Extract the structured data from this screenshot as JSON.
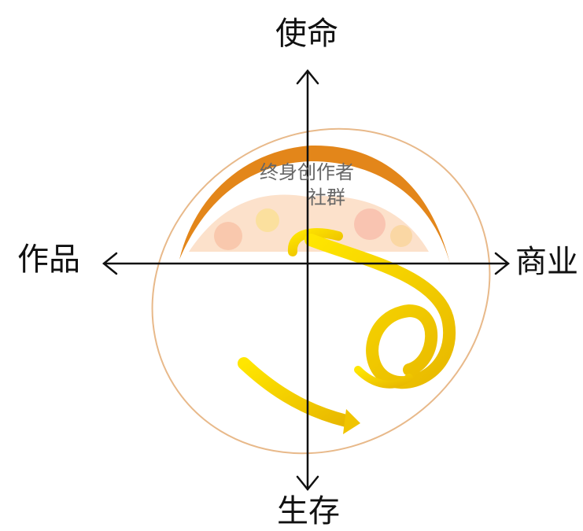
{
  "axes": {
    "top": "使命",
    "left": "作品",
    "right": "商业",
    "bottom": "生存"
  },
  "center": {
    "line1": "终身创作者",
    "line2": "社群"
  }
}
